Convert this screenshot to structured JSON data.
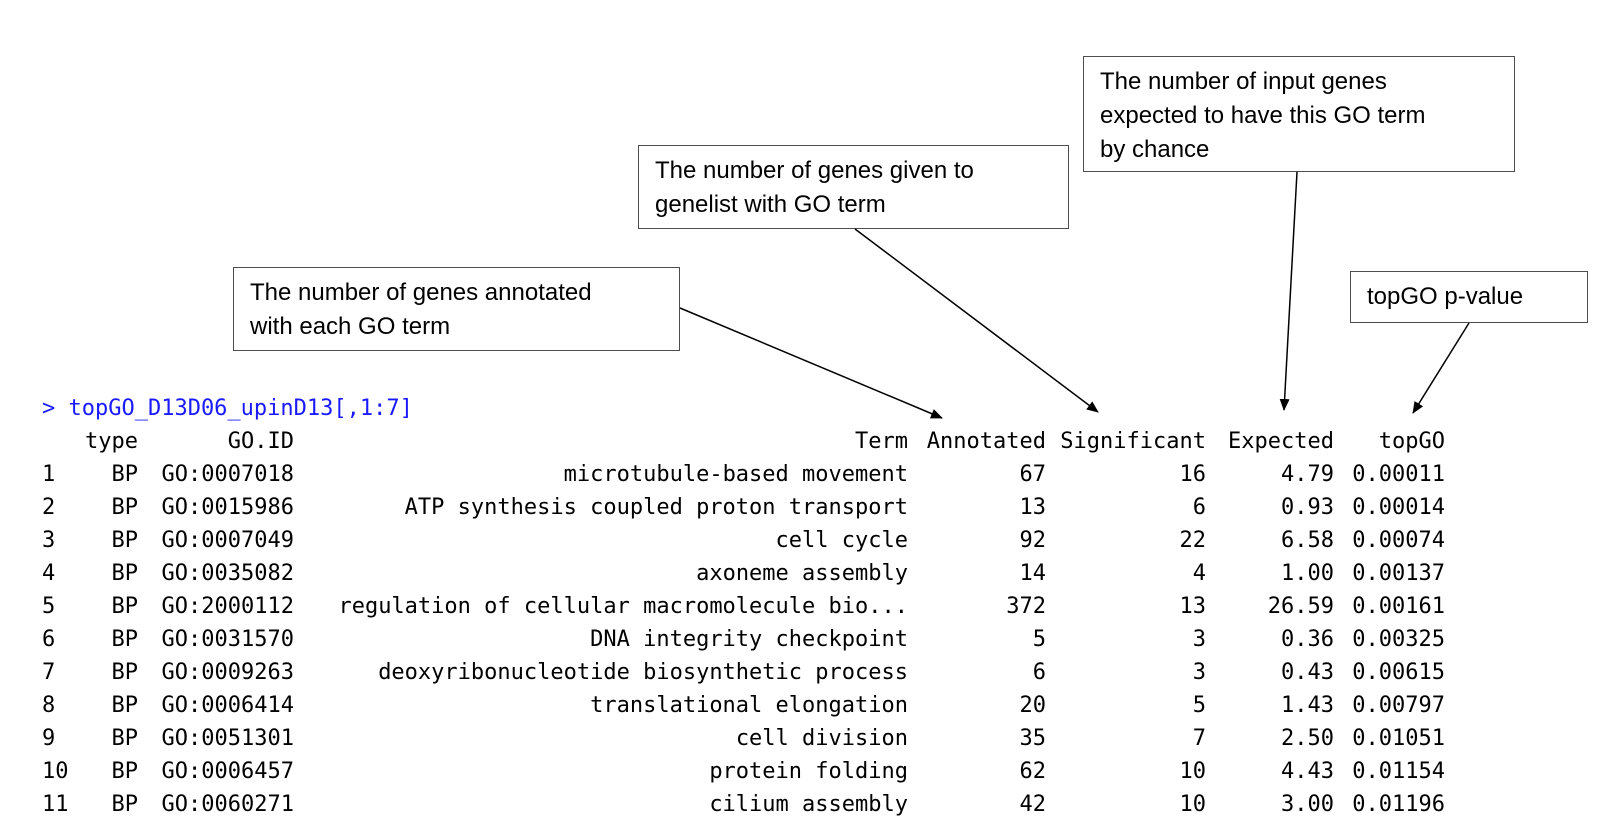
{
  "callouts": {
    "annotated": [
      "The number of genes annotated",
      "with each GO term"
    ],
    "significant": [
      "The number of genes given to",
      "genelist with GO term"
    ],
    "expected": [
      "The number of input genes",
      "expected to have this GO term",
      "by chance"
    ],
    "topgo": [
      "topGO p-value"
    ]
  },
  "console": {
    "command": "> topGO_D13D06_upinD13[,1:7]",
    "headers": {
      "type": "type",
      "go_id": "GO.ID",
      "term": "Term",
      "annotated": "Annotated",
      "significant": "Significant",
      "expected": "Expected",
      "topgo": "topGO"
    },
    "rows": [
      {
        "idx": "1",
        "type": "BP",
        "go_id": "GO:0007018",
        "term": "microtubule-based movement",
        "annotated": "67",
        "significant": "16",
        "expected": "4.79",
        "topgo": "0.00011"
      },
      {
        "idx": "2",
        "type": "BP",
        "go_id": "GO:0015986",
        "term": "ATP synthesis coupled proton transport",
        "annotated": "13",
        "significant": "6",
        "expected": "0.93",
        "topgo": "0.00014"
      },
      {
        "idx": "3",
        "type": "BP",
        "go_id": "GO:0007049",
        "term": "cell cycle",
        "annotated": "92",
        "significant": "22",
        "expected": "6.58",
        "topgo": "0.00074"
      },
      {
        "idx": "4",
        "type": "BP",
        "go_id": "GO:0035082",
        "term": "axoneme assembly",
        "annotated": "14",
        "significant": "4",
        "expected": "1.00",
        "topgo": "0.00137"
      },
      {
        "idx": "5",
        "type": "BP",
        "go_id": "GO:2000112",
        "term": "regulation of cellular macromolecule bio...",
        "annotated": "372",
        "significant": "13",
        "expected": "26.59",
        "topgo": "0.00161"
      },
      {
        "idx": "6",
        "type": "BP",
        "go_id": "GO:0031570",
        "term": "DNA integrity checkpoint",
        "annotated": "5",
        "significant": "3",
        "expected": "0.36",
        "topgo": "0.00325"
      },
      {
        "idx": "7",
        "type": "BP",
        "go_id": "GO:0009263",
        "term": "deoxyribonucleotide biosynthetic process",
        "annotated": "6",
        "significant": "3",
        "expected": "0.43",
        "topgo": "0.00615"
      },
      {
        "idx": "8",
        "type": "BP",
        "go_id": "GO:0006414",
        "term": "translational elongation",
        "annotated": "20",
        "significant": "5",
        "expected": "1.43",
        "topgo": "0.00797"
      },
      {
        "idx": "9",
        "type": "BP",
        "go_id": "GO:0051301",
        "term": "cell division",
        "annotated": "35",
        "significant": "7",
        "expected": "2.50",
        "topgo": "0.01051"
      },
      {
        "idx": "10",
        "type": "BP",
        "go_id": "GO:0006457",
        "term": "protein folding",
        "annotated": "62",
        "significant": "10",
        "expected": "4.43",
        "topgo": "0.01154"
      },
      {
        "idx": "11",
        "type": "BP",
        "go_id": "GO:0060271",
        "term": "cilium assembly",
        "annotated": "42",
        "significant": "10",
        "expected": "3.00",
        "topgo": "0.01196"
      }
    ]
  },
  "colors": {
    "prompt": "#1a1aff",
    "text": "#000000",
    "callout_border": "#4d4d4d"
  }
}
